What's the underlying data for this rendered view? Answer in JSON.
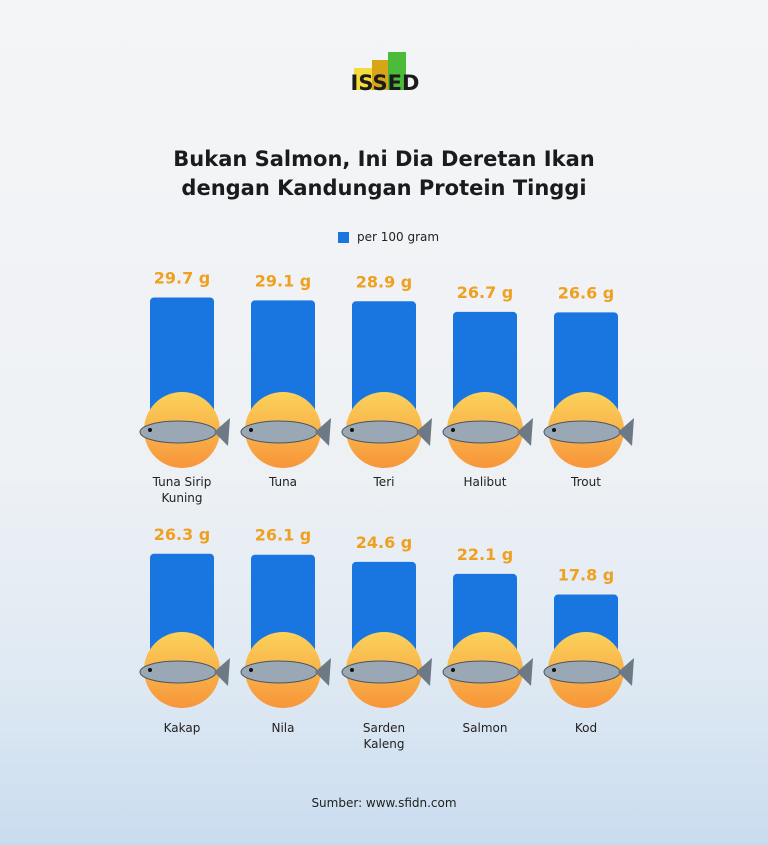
{
  "logo": {
    "text": "ISSED"
  },
  "title_line1": "Bukan Salmon, Ini Dia Deretan Ikan",
  "title_line2": "dengan Kandungan Protein Tinggi",
  "source": "Sumber: www.sfidn.com",
  "colors": {
    "bar": "#1976e0",
    "value_label": "#f0a020",
    "circle_top": "#fbd25a",
    "circle_bottom": "#f7953a"
  },
  "chart_data": {
    "type": "bar",
    "title": "Bukan Salmon, Ini Dia Deretan Ikan dengan Kandungan Protein Tinggi",
    "legend": [
      "per 100 gram"
    ],
    "legend_position": "top-center",
    "unit": "g",
    "categories": [
      "Tuna Sirip Kuning",
      "Tuna",
      "Teri",
      "Halibut",
      "Trout",
      "Kakap",
      "Nila",
      "Sarden Kaleng",
      "Salmon",
      "Kod"
    ],
    "values": [
      29.7,
      29.1,
      28.9,
      26.7,
      26.6,
      26.3,
      26.1,
      24.6,
      22.1,
      17.8
    ],
    "value_labels": [
      "29.7 g",
      "29.1 g",
      "28.9 g",
      "26.7 g",
      "26.6 g",
      "26.3 g",
      "26.1 g",
      "24.6 g",
      "22.1 g",
      "17.8 g"
    ],
    "grid": false
  }
}
